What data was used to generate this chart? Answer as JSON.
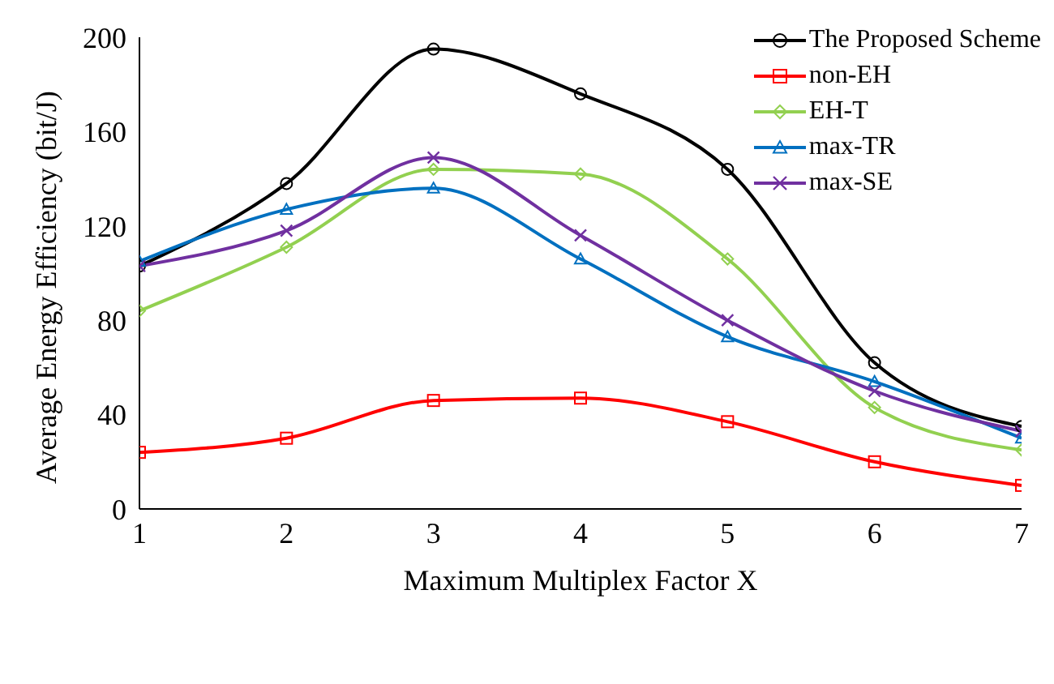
{
  "chart_data": {
    "type": "line",
    "xlabel": "Maximum Multiplex Factor X",
    "ylabel": "Average Energy Efficiency (bit/J)",
    "x": [
      1,
      2,
      3,
      4,
      5,
      6,
      7
    ],
    "xlim": [
      1,
      7
    ],
    "xticks": [
      1,
      2,
      3,
      4,
      5,
      6,
      7
    ],
    "ylim": [
      0,
      200
    ],
    "yticks": [
      0,
      40,
      80,
      120,
      160,
      200
    ],
    "grid": false,
    "legend": "top right",
    "line_style": "solid",
    "series": [
      {
        "name": "The Proposed Scheme",
        "color": "#000000",
        "marker": "circle",
        "values": [
          103,
          138,
          195,
          176,
          144,
          62,
          35
        ]
      },
      {
        "name": "non-EH",
        "color": "#ff0000",
        "marker": "square",
        "values": [
          24,
          30,
          46,
          47,
          37,
          20,
          10
        ]
      },
      {
        "name": "EH-T",
        "color": "#92d050",
        "marker": "diamond",
        "values": [
          84,
          111,
          144,
          142,
          106,
          43,
          25
        ]
      },
      {
        "name": "max-TR",
        "color": "#0070c0",
        "marker": "triangle",
        "values": [
          105,
          127,
          136,
          106,
          73,
          54,
          30
        ]
      },
      {
        "name": "max-SE",
        "color": "#7030a0",
        "marker": "cross",
        "values": [
          103,
          118,
          149,
          116,
          80,
          50,
          33
        ]
      }
    ]
  }
}
